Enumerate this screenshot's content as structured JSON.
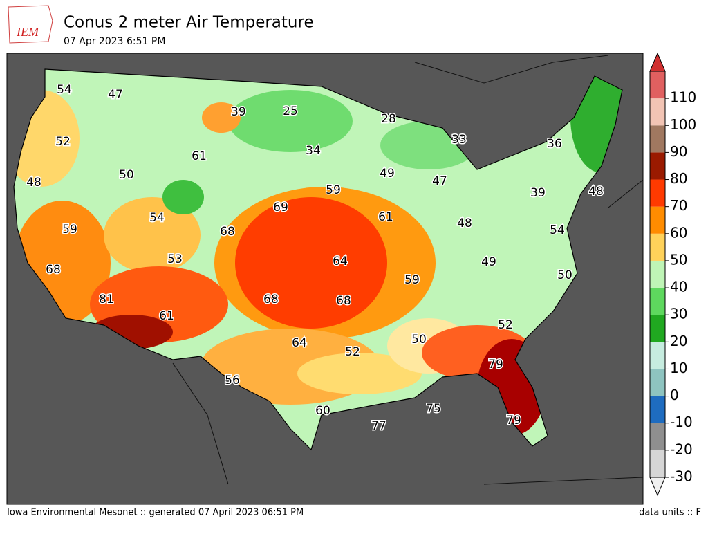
{
  "header": {
    "logo": "IEM",
    "title": "Conus 2 meter Air Temperature",
    "subtitle": "07 Apr 2023 6:51 PM"
  },
  "stations": [
    54,
    47,
    39,
    25,
    28,
    33,
    36,
    52,
    61,
    34,
    59,
    49,
    47,
    48,
    50,
    54,
    68,
    69,
    61,
    48,
    39,
    54,
    48,
    59,
    53,
    64,
    59,
    49,
    50,
    68,
    81,
    61,
    68,
    68,
    52,
    64,
    52,
    50,
    79,
    56,
    60,
    77,
    75,
    79
  ],
  "colorbar": {
    "range": [
      -30,
      120
    ],
    "ticks": [
      -30,
      -20,
      -10,
      0,
      10,
      20,
      30,
      40,
      50,
      60,
      70,
      80,
      90,
      100,
      110
    ],
    "colors": [
      "#d6d6d6",
      "#8f8f8f",
      "#1e6cc0",
      "#8ec4c0",
      "#c6ecdf",
      "#20a820",
      "#5ed85e",
      "#bff5b6",
      "#ffd25a",
      "#ff8c00",
      "#ff3a00",
      "#9a1a00",
      "#a07860",
      "#f2c4b4",
      "#e06060"
    ],
    "under_color": "#f0f0f0",
    "over_color": "#d03030"
  },
  "footer": {
    "left": "Iowa Environmental Mesonet :: generated 07 April 2023 06:51 PM",
    "right": "data units :: F"
  }
}
